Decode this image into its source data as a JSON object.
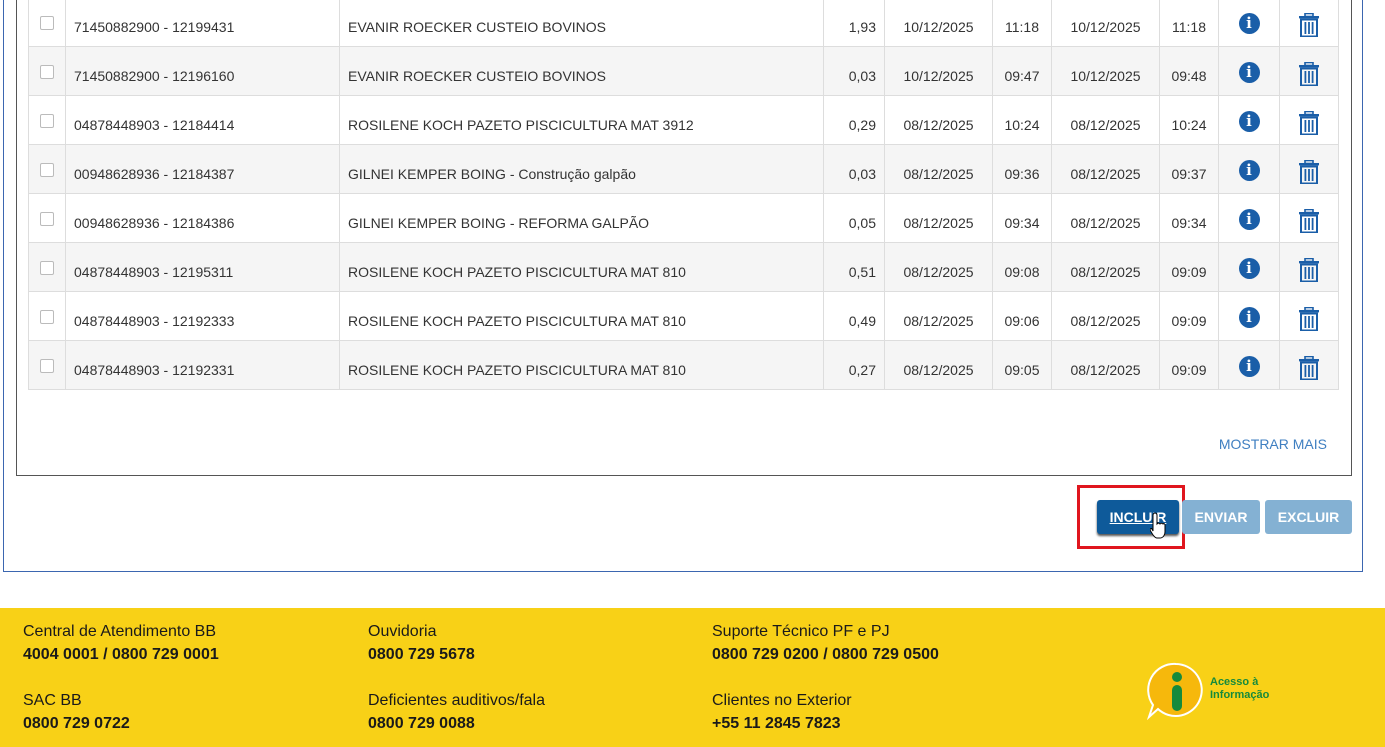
{
  "table": {
    "rows": [
      {
        "id": "71450882900 - 12199431",
        "desc": "EVANIR ROECKER CUSTEIO BOVINOS",
        "value": "1,93",
        "date1": "10/12/2025",
        "time1": "11:18",
        "date2": "10/12/2025",
        "time2": "11:18"
      },
      {
        "id": "71450882900 - 12196160",
        "desc": "EVANIR ROECKER CUSTEIO BOVINOS",
        "value": "0,03",
        "date1": "10/12/2025",
        "time1": "09:47",
        "date2": "10/12/2025",
        "time2": "09:48"
      },
      {
        "id": "04878448903 - 12184414",
        "desc": "ROSILENE KOCH PAZETO PISCICULTURA MAT 3912",
        "value": "0,29",
        "date1": "08/12/2025",
        "time1": "10:24",
        "date2": "08/12/2025",
        "time2": "10:24"
      },
      {
        "id": "00948628936 - 12184387",
        "desc": "GILNEI KEMPER BOING - Construção galpão",
        "value": "0,03",
        "date1": "08/12/2025",
        "time1": "09:36",
        "date2": "08/12/2025",
        "time2": "09:37"
      },
      {
        "id": "00948628936 - 12184386",
        "desc": "GILNEI KEMPER BOING - REFORMA GALPÃO",
        "value": "0,05",
        "date1": "08/12/2025",
        "time1": "09:34",
        "date2": "08/12/2025",
        "time2": "09:34"
      },
      {
        "id": "04878448903 - 12195311",
        "desc": "ROSILENE KOCH PAZETO PISCICULTURA MAT 810",
        "value": "0,51",
        "date1": "08/12/2025",
        "time1": "09:08",
        "date2": "08/12/2025",
        "time2": "09:09"
      },
      {
        "id": "04878448903 - 12192333",
        "desc": "ROSILENE KOCH PAZETO PISCICULTURA MAT 810",
        "value": "0,49",
        "date1": "08/12/2025",
        "time1": "09:06",
        "date2": "08/12/2025",
        "time2": "09:09"
      },
      {
        "id": "04878448903 - 12192331",
        "desc": "ROSILENE KOCH PAZETO PISCICULTURA MAT 810",
        "value": "0,27",
        "date1": "08/12/2025",
        "time1": "09:05",
        "date2": "08/12/2025",
        "time2": "09:09"
      }
    ],
    "info_icon": "info-icon",
    "delete_icon": "trash-icon"
  },
  "show_more": "MOSTRAR MAIS",
  "buttons": {
    "incluir": "INCLUIR",
    "enviar": "ENVIAR",
    "excluir": "EXCLUIR"
  },
  "colors": {
    "primary": "#0e5a9a",
    "disabled": "#84b1d3",
    "footer": "#f8d117",
    "highlight": "#e0161e"
  },
  "footer": {
    "col1": [
      {
        "label": "Central de Atendimento BB",
        "value": "4004 0001 / 0800 729 0001"
      },
      {
        "label": "SAC BB",
        "value": "0800 729 0722"
      }
    ],
    "col2": [
      {
        "label": "Ouvidoria",
        "value": "0800 729 5678"
      },
      {
        "label": "Deficientes auditivos/fala",
        "value": "0800 729 0088"
      }
    ],
    "col3": [
      {
        "label": "Suporte Técnico PF e PJ",
        "value": "0800 729 0200 / 0800 729 0500"
      },
      {
        "label": "Clientes no Exterior",
        "value": "+55 11 2845 7823"
      }
    ],
    "logo_text": "Acesso à Informação"
  }
}
